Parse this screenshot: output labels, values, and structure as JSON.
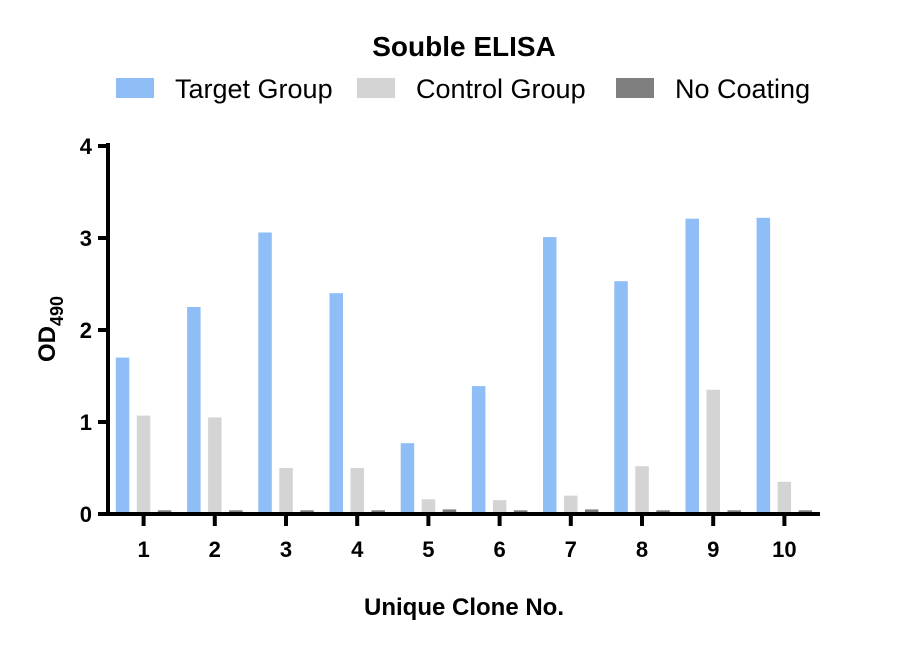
{
  "chart_data": {
    "type": "bar",
    "title": "Souble ELISA",
    "xlabel": "Unique Clone No.",
    "ylabel": "OD",
    "ylabel_subscript": "490",
    "categories": [
      "1",
      "2",
      "3",
      "4",
      "5",
      "6",
      "7",
      "8",
      "9",
      "10"
    ],
    "ylim": [
      0,
      4
    ],
    "yticks": [
      "0",
      "1",
      "2",
      "3",
      "4"
    ],
    "grid": false,
    "legend_position": "top",
    "series": [
      {
        "name": "Target Group",
        "color": "#8fbdf5",
        "values": [
          1.7,
          2.25,
          3.06,
          2.4,
          0.77,
          1.39,
          3.01,
          2.53,
          3.21,
          3.22
        ]
      },
      {
        "name": "Control Group",
        "color": "#d4d4d4",
        "values": [
          1.07,
          1.05,
          0.5,
          0.5,
          0.16,
          0.15,
          0.2,
          0.52,
          1.35,
          0.35
        ]
      },
      {
        "name": "No Coating",
        "color": "#7f7f7f",
        "values": [
          0.04,
          0.04,
          0.04,
          0.04,
          0.05,
          0.04,
          0.05,
          0.04,
          0.04,
          0.04
        ]
      }
    ]
  }
}
